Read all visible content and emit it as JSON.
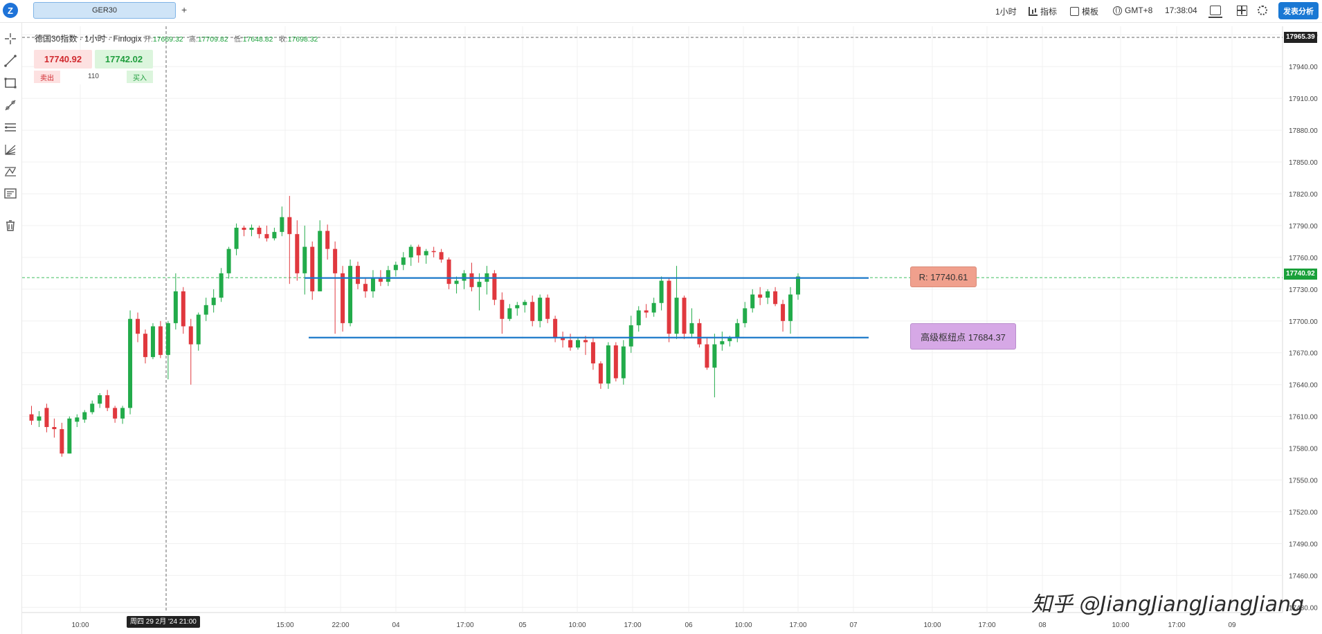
{
  "header": {
    "symbol_tab": "GER30",
    "add_tab": "+",
    "timeframe": "1小时",
    "indicators": "指标",
    "templates": "模板",
    "timezone": "GMT+8",
    "clock": "17:38:04",
    "publish_button": "发表分析"
  },
  "legend": {
    "title": "德国30指数 · 1小时 · Finlogix",
    "open_label": "开:",
    "open": "17669.32",
    "high_label": "高:",
    "high": "17709.82",
    "low_label": "低:",
    "low": "17648.82",
    "close_label": "收:",
    "close": "17698.32"
  },
  "trade_panel": {
    "sell_price": "17740.92",
    "buy_price": "17742.02",
    "sell_label": "卖出",
    "quantity": "110",
    "buy_label": "买入"
  },
  "left_tools": [
    "crosshair-icon",
    "trend-line-icon",
    "rectangle-icon",
    "ray-icon",
    "horizontal-lines-icon",
    "fib-fan-icon",
    "pattern-icon",
    "text-note-icon",
    "trash-icon"
  ],
  "annotations": {
    "resistance_label": "R: 17740.61",
    "pivot_label": "高级枢纽点 17684.37"
  },
  "crosshair": {
    "time_tag": "周四 29 2月 '24 21:00",
    "price_tag": "17965.39"
  },
  "last_price_tag": "17740.92",
  "watermark": "知乎 @JiangJiangJiangJiang",
  "colors": {
    "up": "#22ab4a",
    "down": "#e0383e",
    "level_line": "#1a78c9",
    "accent": "#1978d4"
  },
  "chart_data": {
    "type": "candlestick",
    "symbol": "GER30",
    "interval": "1h",
    "y_ticks": [
      17970,
      17940,
      17910,
      17880,
      17850,
      17820,
      17790,
      17760,
      17730,
      17700,
      17670,
      17640,
      17610,
      17580,
      17550,
      17520,
      17490,
      17460,
      17430
    ],
    "ylim": [
      17425,
      17978
    ],
    "x_ticks": [
      "10:00",
      "15:00",
      "22:00",
      "04",
      "17:00",
      "05",
      "10:00",
      "17:00",
      "06",
      "10:00",
      "17:00",
      "07",
      "10:00",
      "17:00",
      "08",
      "10:00",
      "17:00",
      "09"
    ],
    "levels": [
      {
        "name": "R",
        "value": 17740.61
      },
      {
        "name": "高级枢纽点",
        "value": 17684.37
      }
    ],
    "last_price": 17740.92,
    "candles": [
      [
        17612,
        17620,
        17602,
        17606
      ],
      [
        17606,
        17615,
        17600,
        17610
      ],
      [
        17618,
        17622,
        17595,
        17600
      ],
      [
        17600,
        17608,
        17590,
        17598
      ],
      [
        17598,
        17604,
        17572,
        17575
      ],
      [
        17575,
        17610,
        17575,
        17608
      ],
      [
        17605,
        17612,
        17600,
        17609
      ],
      [
        17607,
        17616,
        17604,
        17614
      ],
      [
        17614,
        17625,
        17612,
        17622
      ],
      [
        17622,
        17632,
        17618,
        17630
      ],
      [
        17630,
        17635,
        17615,
        17618
      ],
      [
        17618,
        17620,
        17604,
        17608
      ],
      [
        17608,
        17620,
        17603,
        17618
      ],
      [
        17618,
        17710,
        17612,
        17702
      ],
      [
        17702,
        17708,
        17680,
        17688
      ],
      [
        17688,
        17692,
        17660,
        17666
      ],
      [
        17666,
        17698,
        17664,
        17695
      ],
      [
        17695,
        17700,
        17665,
        17668
      ],
      [
        17668,
        17700,
        17645,
        17698
      ],
      [
        17698,
        17745,
        17692,
        17728
      ],
      [
        17728,
        17732,
        17688,
        17695
      ],
      [
        17695,
        17702,
        17640,
        17678
      ],
      [
        17678,
        17708,
        17672,
        17706
      ],
      [
        17706,
        17722,
        17700,
        17715
      ],
      [
        17715,
        17730,
        17708,
        17722
      ],
      [
        17722,
        17750,
        17718,
        17745
      ],
      [
        17745,
        17770,
        17740,
        17768
      ],
      [
        17768,
        17792,
        17762,
        17788
      ],
      [
        17788,
        17790,
        17780,
        17786
      ],
      [
        17786,
        17791,
        17780,
        17788
      ],
      [
        17788,
        17790,
        17778,
        17782
      ],
      [
        17782,
        17790,
        17775,
        17778
      ],
      [
        17778,
        17788,
        17776,
        17784
      ],
      [
        17784,
        17808,
        17780,
        17798
      ],
      [
        17798,
        17818,
        17735,
        17782
      ],
      [
        17782,
        17795,
        17738,
        17745
      ],
      [
        17745,
        17790,
        17725,
        17770
      ],
      [
        17770,
        17775,
        17720,
        17728
      ],
      [
        17728,
        17795,
        17728,
        17785
      ],
      [
        17785,
        17791,
        17758,
        17768
      ],
      [
        17768,
        17775,
        17688,
        17745
      ],
      [
        17745,
        17752,
        17690,
        17698
      ],
      [
        17698,
        17758,
        17695,
        17752
      ],
      [
        17752,
        17756,
        17730,
        17735
      ],
      [
        17735,
        17740,
        17722,
        17728
      ],
      [
        17728,
        17748,
        17722,
        17740
      ],
      [
        17740,
        17748,
        17733,
        17737
      ],
      [
        17737,
        17752,
        17733,
        17748
      ],
      [
        17748,
        17756,
        17742,
        17753
      ],
      [
        17753,
        17765,
        17748,
        17760
      ],
      [
        17760,
        17772,
        17752,
        17770
      ],
      [
        17770,
        17772,
        17755,
        17762
      ],
      [
        17762,
        17768,
        17754,
        17766
      ],
      [
        17766,
        17770,
        17760,
        17765
      ],
      [
        17765,
        17768,
        17755,
        17758
      ],
      [
        17758,
        17760,
        17730,
        17735
      ],
      [
        17735,
        17742,
        17726,
        17738
      ],
      [
        17738,
        17748,
        17730,
        17745
      ],
      [
        17745,
        17755,
        17728,
        17732
      ],
      [
        17732,
        17745,
        17710,
        17737
      ],
      [
        17737,
        17752,
        17725,
        17745
      ],
      [
        17745,
        17748,
        17715,
        17720
      ],
      [
        17720,
        17727,
        17688,
        17702
      ],
      [
        17702,
        17716,
        17700,
        17712
      ],
      [
        17712,
        17718,
        17705,
        17715
      ],
      [
        17715,
        17720,
        17708,
        17718
      ],
      [
        17718,
        17724,
        17695,
        17700
      ],
      [
        17700,
        17725,
        17694,
        17722
      ],
      [
        17722,
        17725,
        17698,
        17702
      ],
      [
        17702,
        17705,
        17680,
        17684
      ],
      [
        17684,
        17690,
        17675,
        17682
      ],
      [
        17682,
        17688,
        17672,
        17675
      ],
      [
        17675,
        17684,
        17673,
        17682
      ],
      [
        17682,
        17686,
        17668,
        17680
      ],
      [
        17680,
        17684,
        17654,
        17660
      ],
      [
        17660,
        17662,
        17636,
        17641
      ],
      [
        17641,
        17680,
        17636,
        17677
      ],
      [
        17677,
        17680,
        17643,
        17646
      ],
      [
        17646,
        17682,
        17640,
        17676
      ],
      [
        17676,
        17705,
        17670,
        17696
      ],
      [
        17696,
        17714,
        17690,
        17710
      ],
      [
        17710,
        17716,
        17703,
        17708
      ],
      [
        17708,
        17722,
        17704,
        17717
      ],
      [
        17717,
        17742,
        17710,
        17738
      ],
      [
        17738,
        17740,
        17680,
        17688
      ],
      [
        17688,
        17752,
        17683,
        17722
      ],
      [
        17722,
        17724,
        17683,
        17688
      ],
      [
        17688,
        17712,
        17684,
        17698
      ],
      [
        17698,
        17702,
        17675,
        17678
      ],
      [
        17678,
        17685,
        17654,
        17656
      ],
      [
        17656,
        17688,
        17628,
        17678
      ],
      [
        17678,
        17690,
        17672,
        17681
      ],
      [
        17681,
        17686,
        17676,
        17684
      ],
      [
        17684,
        17702,
        17680,
        17698
      ],
      [
        17698,
        17718,
        17694,
        17712
      ],
      [
        17712,
        17730,
        17708,
        17725
      ],
      [
        17725,
        17732,
        17715,
        17722
      ],
      [
        17722,
        17730,
        17716,
        17728
      ],
      [
        17728,
        17732,
        17714,
        17716
      ],
      [
        17716,
        17720,
        17690,
        17700
      ],
      [
        17700,
        17732,
        17688,
        17725
      ],
      [
        17725,
        17745,
        17720,
        17742
      ]
    ]
  }
}
